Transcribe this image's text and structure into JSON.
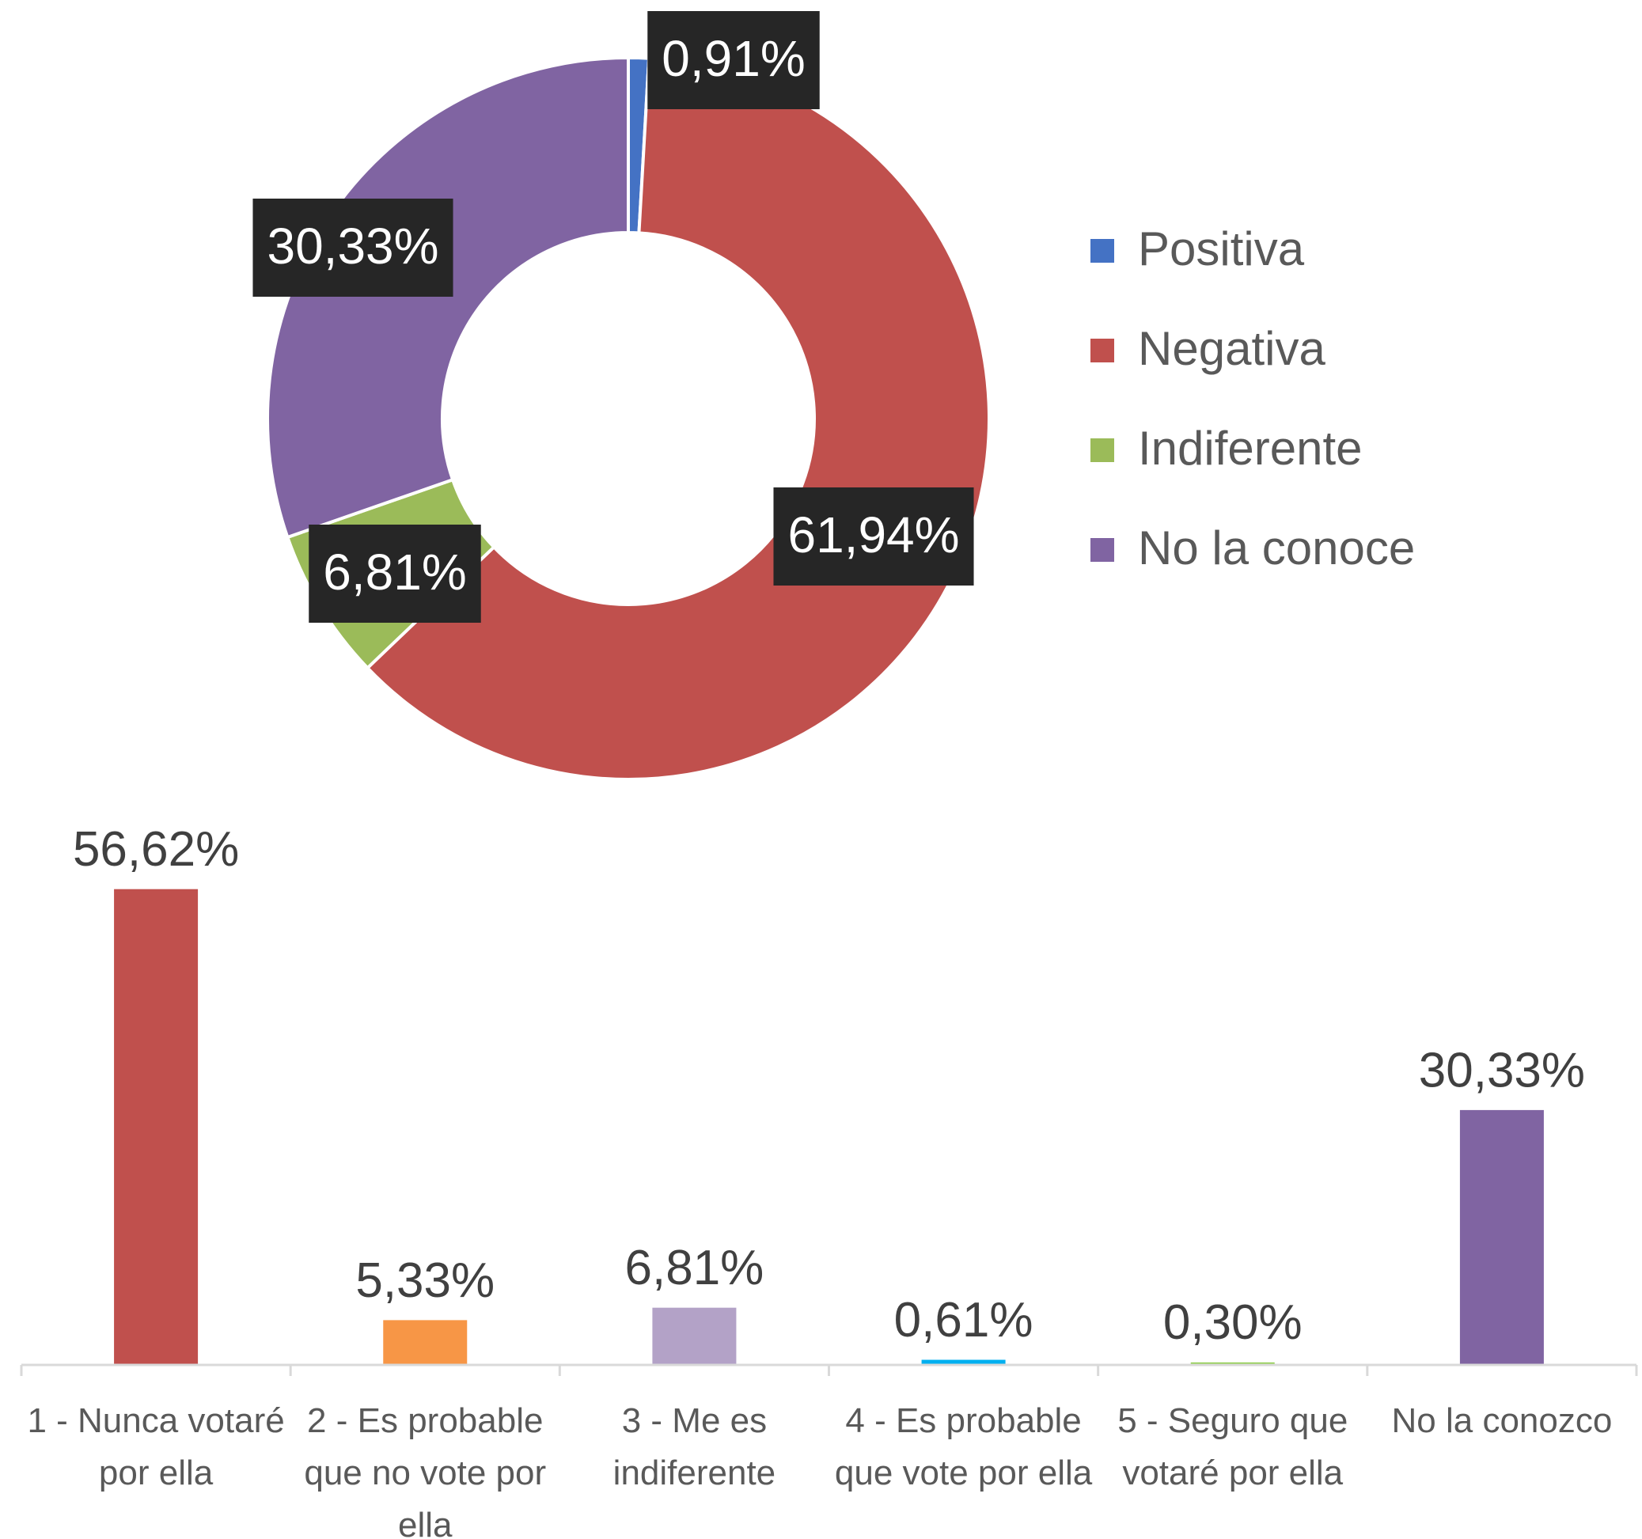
{
  "chart_data": [
    {
      "type": "donut",
      "categories": [
        "Positiva",
        "Negativa",
        "Indiferente",
        "No la conoce"
      ],
      "values": [
        0.91,
        61.94,
        6.81,
        30.33
      ],
      "value_labels": [
        "0,91%",
        "61,94%",
        "6,81%",
        "30,33%"
      ],
      "colors": [
        "#4472c4",
        "#c0504d",
        "#9bbb59",
        "#8064a2"
      ],
      "legend": "right"
    },
    {
      "type": "bar",
      "categories": [
        "1 - Nunca votaré por ella",
        "2 - Es probable que no vote por ella",
        "3 - Me es indiferente",
        "4 - Es probable que vote por ella",
        "5 - Seguro que votaré por ella",
        "No la conozco"
      ],
      "values": [
        56.62,
        5.33,
        6.81,
        0.61,
        0.3,
        30.33
      ],
      "value_labels": [
        "56,62%",
        "5,33%",
        "6,81%",
        "0,61%",
        "0,30%",
        "30,33%"
      ],
      "colors": [
        "#c0504d",
        "#f79646",
        "#b3a2c7",
        "#00b0f0",
        "#92d050",
        "#8064a2"
      ]
    }
  ]
}
